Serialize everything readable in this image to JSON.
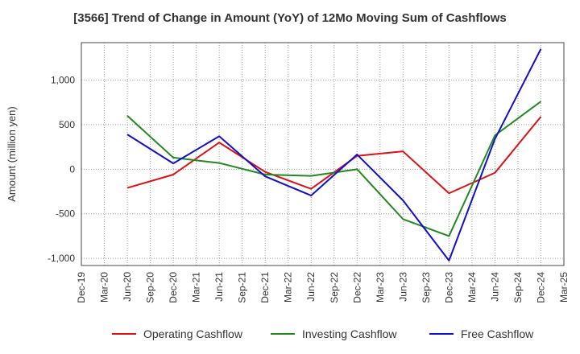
{
  "chart_data": {
    "type": "line",
    "title": "[3566]  Trend of Change in Amount (YoY) of 12Mo Moving Sum of Cashflows",
    "xlabel": "",
    "ylabel": "Amount (million yen)",
    "ylim": [
      -1080,
      1420
    ],
    "yticks": [
      -1000,
      -500,
      0,
      500,
      1000
    ],
    "ytick_labels": [
      "-1,000",
      "-500",
      "0",
      "500",
      "1,000"
    ],
    "grid": true,
    "legend_position": "bottom",
    "categories": [
      "Dec-19",
      "Mar-20",
      "Jun-20",
      "Sep-20",
      "Dec-20",
      "Mar-21",
      "Jun-21",
      "Sep-21",
      "Dec-21",
      "Mar-22",
      "Jun-22",
      "Sep-22",
      "Dec-22",
      "Mar-23",
      "Jun-23",
      "Sep-23",
      "Dec-23",
      "Mar-24",
      "Jun-24",
      "Sep-24",
      "Dec-24",
      "Mar-25"
    ],
    "series": [
      {
        "name": "Operating Cashflow",
        "color": "#dd1111",
        "values": [
          null,
          null,
          -210,
          null,
          -60,
          null,
          300,
          null,
          -30,
          null,
          -220,
          null,
          150,
          null,
          200,
          null,
          -270,
          null,
          -40,
          null,
          590,
          null
        ]
      },
      {
        "name": "Investing Cashflow",
        "color": "#228822",
        "values": [
          null,
          null,
          600,
          null,
          130,
          null,
          70,
          null,
          -60,
          null,
          -75,
          null,
          0,
          null,
          -560,
          null,
          -750,
          null,
          380,
          null,
          760,
          null
        ]
      },
      {
        "name": "Free Cashflow",
        "color": "#1111cc",
        "values": [
          null,
          null,
          390,
          null,
          65,
          null,
          370,
          null,
          -80,
          null,
          -295,
          null,
          165,
          null,
          -350,
          null,
          -1025,
          null,
          340,
          null,
          1350,
          null
        ]
      }
    ]
  }
}
